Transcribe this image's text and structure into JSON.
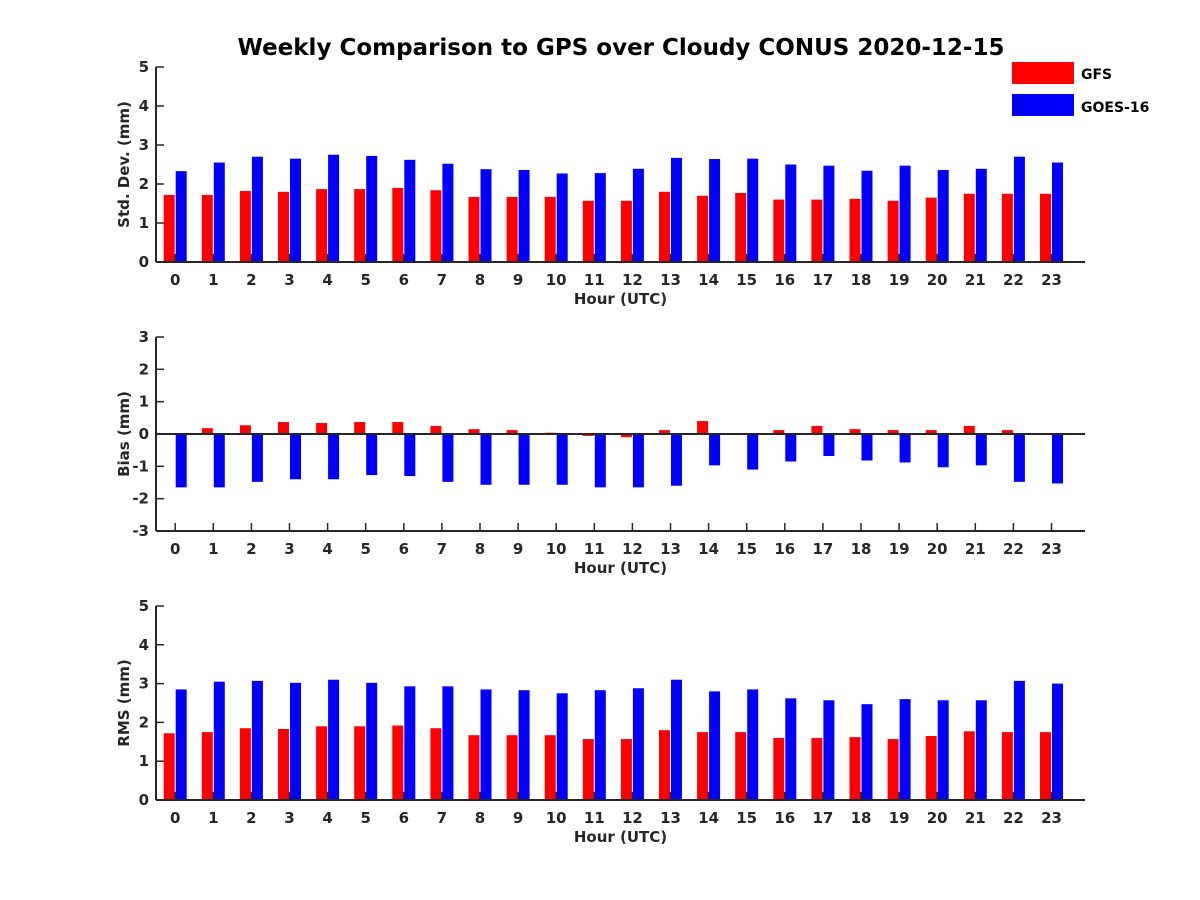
{
  "title": "Weekly Comparison to GPS over Cloudy CONUS 2020-12-15",
  "colors": {
    "GFS": "#ff0000",
    "GOES-16": "#0000ff",
    "axis": "#262626"
  },
  "legend": {
    "placement": "top-right",
    "entries": [
      "GFS",
      "GOES-16"
    ]
  },
  "chart_data": [
    {
      "type": "bar",
      "xlabel": "Hour (UTC)",
      "ylabel": "Std. Dev. (mm)",
      "ylim": [
        0,
        5
      ],
      "yticks": [
        "0",
        "1",
        "2",
        "3",
        "4",
        "5"
      ],
      "categories": [
        "0",
        "1",
        "2",
        "3",
        "4",
        "5",
        "6",
        "7",
        "8",
        "9",
        "10",
        "11",
        "12",
        "13",
        "14",
        "15",
        "16",
        "17",
        "18",
        "19",
        "20",
        "21",
        "22",
        "23"
      ],
      "series": [
        {
          "name": "GFS",
          "values": [
            1.72,
            1.72,
            1.82,
            1.8,
            1.87,
            1.87,
            1.9,
            1.84,
            1.67,
            1.67,
            1.67,
            1.57,
            1.57,
            1.8,
            1.7,
            1.77,
            1.6,
            1.6,
            1.62,
            1.57,
            1.65,
            1.75,
            1.75,
            1.75
          ]
        },
        {
          "name": "GOES-16",
          "values": [
            2.33,
            2.55,
            2.7,
            2.65,
            2.75,
            2.72,
            2.62,
            2.52,
            2.38,
            2.36,
            2.27,
            2.28,
            2.39,
            2.67,
            2.64,
            2.65,
            2.5,
            2.47,
            2.34,
            2.47,
            2.36,
            2.39,
            2.7,
            2.55
          ]
        }
      ]
    },
    {
      "type": "bar",
      "xlabel": "Hour (UTC)",
      "ylabel": "Bias (mm)",
      "ylim": [
        -3,
        3
      ],
      "yticks": [
        "-3",
        "-2",
        "-1",
        "0",
        "1",
        "2",
        "3"
      ],
      "categories": [
        "0",
        "1",
        "2",
        "3",
        "4",
        "5",
        "6",
        "7",
        "8",
        "9",
        "10",
        "11",
        "12",
        "13",
        "14",
        "15",
        "16",
        "17",
        "18",
        "19",
        "20",
        "21",
        "22",
        "23"
      ],
      "series": [
        {
          "name": "GFS",
          "values": [
            0.0,
            0.18,
            0.27,
            0.37,
            0.34,
            0.37,
            0.37,
            0.25,
            0.15,
            0.12,
            0.04,
            -0.06,
            -0.1,
            0.12,
            0.4,
            0.0,
            0.12,
            0.25,
            0.15,
            0.12,
            0.12,
            0.25,
            0.12,
            0.0
          ]
        },
        {
          "name": "GOES-16",
          "values": [
            -1.65,
            -1.65,
            -1.48,
            -1.4,
            -1.4,
            -1.27,
            -1.3,
            -1.48,
            -1.57,
            -1.57,
            -1.57,
            -1.65,
            -1.65,
            -1.6,
            -0.97,
            -1.1,
            -0.85,
            -0.68,
            -0.82,
            -0.88,
            -1.03,
            -0.97,
            -1.48,
            -1.53
          ]
        }
      ]
    },
    {
      "type": "bar",
      "xlabel": "Hour (UTC)",
      "ylabel": "RMS (mm)",
      "ylim": [
        0,
        5
      ],
      "yticks": [
        "0",
        "1",
        "2",
        "3",
        "4",
        "5"
      ],
      "categories": [
        "0",
        "1",
        "2",
        "3",
        "4",
        "5",
        "6",
        "7",
        "8",
        "9",
        "10",
        "11",
        "12",
        "13",
        "14",
        "15",
        "16",
        "17",
        "18",
        "19",
        "20",
        "21",
        "22",
        "23"
      ],
      "series": [
        {
          "name": "GFS",
          "values": [
            1.72,
            1.75,
            1.85,
            1.83,
            1.9,
            1.9,
            1.92,
            1.85,
            1.67,
            1.67,
            1.67,
            1.57,
            1.57,
            1.8,
            1.75,
            1.75,
            1.6,
            1.6,
            1.62,
            1.57,
            1.65,
            1.77,
            1.75,
            1.75
          ]
        },
        {
          "name": "GOES-16",
          "values": [
            2.85,
            3.05,
            3.07,
            3.02,
            3.1,
            3.02,
            2.93,
            2.93,
            2.85,
            2.83,
            2.75,
            2.83,
            2.88,
            3.1,
            2.8,
            2.85,
            2.62,
            2.57,
            2.47,
            2.6,
            2.57,
            2.57,
            3.07,
            3.0
          ]
        }
      ]
    }
  ]
}
